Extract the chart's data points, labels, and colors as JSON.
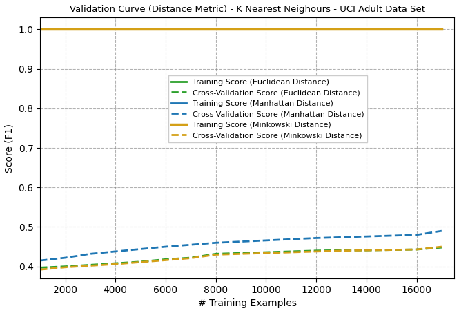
{
  "title": "Validation Curve (Distance Metric) - K Nearest Neighours - UCI Adult Data Set",
  "xlabel": "# Training Examples",
  "ylabel": "Score (F1)",
  "train_sizes": [
    1000,
    2000,
    3000,
    4000,
    5000,
    6000,
    7000,
    8000,
    9000,
    10000,
    11000,
    12000,
    13000,
    14000,
    15000,
    16000,
    17000
  ],
  "euclidean_train": [
    1.0,
    1.0,
    1.0,
    1.0,
    1.0,
    1.0,
    1.0,
    1.0,
    1.0,
    1.0,
    1.0,
    1.0,
    1.0,
    1.0,
    1.0,
    1.0,
    1.0
  ],
  "euclidean_cv": [
    0.397,
    0.4,
    0.404,
    0.408,
    0.412,
    0.418,
    0.422,
    0.432,
    0.434,
    0.436,
    0.438,
    0.44,
    0.441,
    0.441,
    0.442,
    0.443,
    0.448
  ],
  "manhattan_train": [
    1.0,
    1.0,
    1.0,
    1.0,
    1.0,
    1.0,
    1.0,
    1.0,
    1.0,
    1.0,
    1.0,
    1.0,
    1.0,
    1.0,
    1.0,
    1.0,
    1.0
  ],
  "manhattan_cv": [
    0.415,
    0.422,
    0.432,
    0.438,
    0.444,
    0.45,
    0.455,
    0.46,
    0.463,
    0.466,
    0.469,
    0.472,
    0.474,
    0.476,
    0.478,
    0.48,
    0.49
  ],
  "minkowski_train": [
    1.0,
    1.0,
    1.0,
    1.0,
    1.0,
    1.0,
    1.0,
    1.0,
    1.0,
    1.0,
    1.0,
    1.0,
    1.0,
    1.0,
    1.0,
    1.0,
    1.0
  ],
  "minkowski_cv": [
    0.392,
    0.398,
    0.402,
    0.406,
    0.411,
    0.416,
    0.421,
    0.43,
    0.432,
    0.434,
    0.436,
    0.438,
    0.44,
    0.441,
    0.442,
    0.443,
    0.45
  ],
  "color_green": "#2ca02c",
  "color_blue": "#1f77b4",
  "color_orange": "#d4a017",
  "ylim": [
    0.37,
    1.03
  ],
  "xlim": [
    1000,
    17500
  ],
  "xticks": [
    2000,
    4000,
    6000,
    8000,
    10000,
    12000,
    14000,
    16000
  ],
  "yticks": [
    0.4,
    0.5,
    0.6,
    0.7,
    0.8,
    0.9,
    1.0
  ],
  "legend_labels": [
    "Training Score (Euclidean Distance)",
    "Cross-Validation Score (Euclidean Distance)",
    "Training Score (Manhattan Distance)",
    "Cross-Validation Score (Manhattan Distance)",
    "Training Score (Minkowski Distance)",
    "Cross-Validation Score (Minkowski Distance)"
  ]
}
